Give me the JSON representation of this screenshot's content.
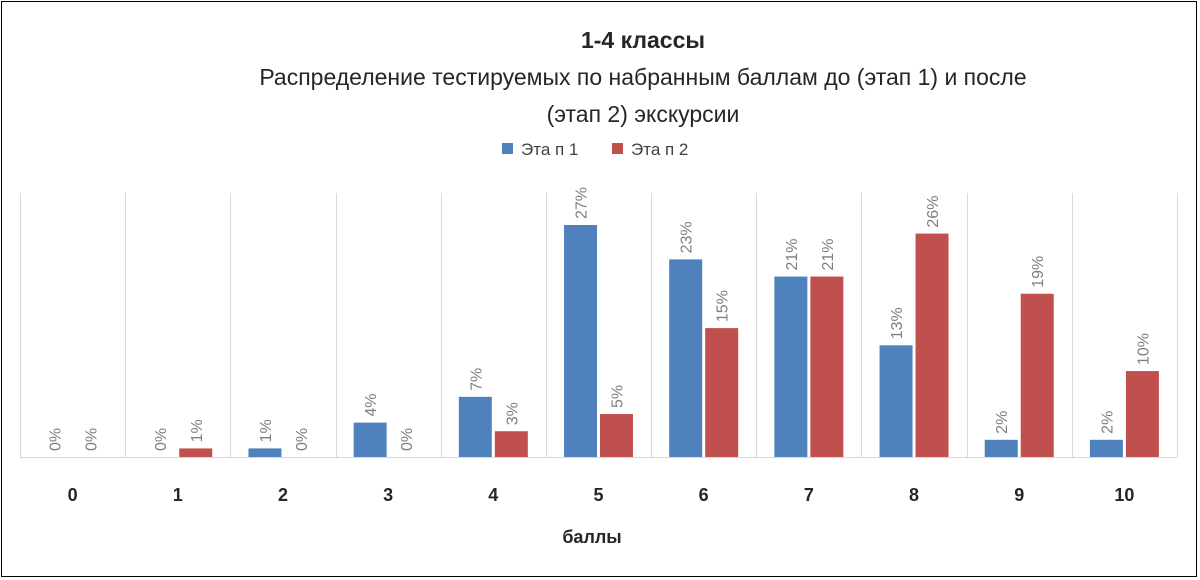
{
  "chart_data": {
    "type": "bar",
    "title": "1-4 классы",
    "subtitle_line1": "Распределение тестируемых по набранным баллам до (этап 1) и после",
    "subtitle_line2": "(этап 2) экскурсии",
    "xlabel": "баллы",
    "ylabel": "",
    "categories": [
      "0",
      "1",
      "2",
      "3",
      "4",
      "5",
      "6",
      "7",
      "8",
      "9",
      "10"
    ],
    "series": [
      {
        "name": "Эта п 1",
        "color": "#4f81bd",
        "values": [
          0,
          0,
          1,
          4,
          7,
          27,
          23,
          21,
          13,
          2,
          2
        ],
        "labels": [
          "0%",
          "0%",
          "1%",
          "4%",
          "7%",
          "27%",
          "23%",
          "21%",
          "13%",
          "2%",
          "2%"
        ]
      },
      {
        "name": "Эта п 2",
        "color": "#c0504d",
        "values": [
          0,
          1,
          0,
          0,
          3,
          5,
          15,
          21,
          26,
          19,
          10
        ],
        "labels": [
          "0%",
          "1%",
          "0%",
          "0%",
          "3%",
          "5%",
          "15%",
          "21%",
          "26%",
          "19%",
          "10%"
        ]
      }
    ],
    "ylim": [
      0,
      30
    ],
    "grid": "vertical category separators",
    "legend": "top-center"
  }
}
